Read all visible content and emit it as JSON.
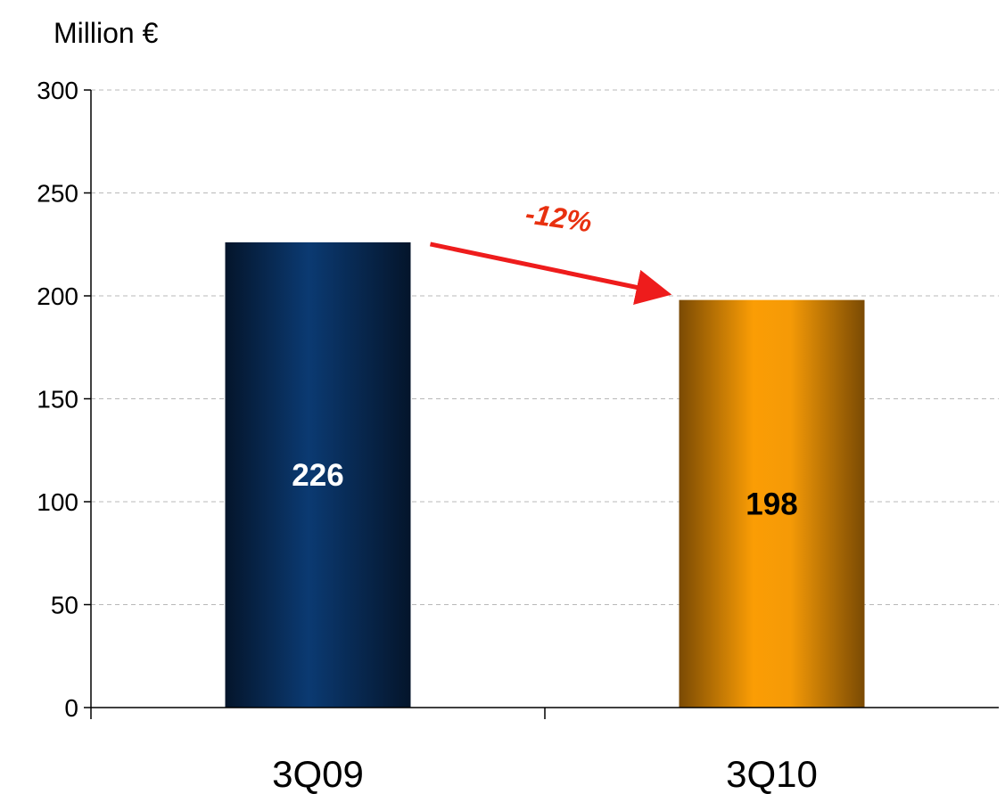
{
  "chart_data": {
    "type": "bar",
    "ylabel": "Million €",
    "ylim": [
      0,
      300
    ],
    "yticks": [
      0,
      50,
      100,
      150,
      200,
      250,
      300
    ],
    "grid": true,
    "categories": [
      "3Q09",
      "3Q10"
    ],
    "values": [
      226,
      198
    ],
    "data_labels": [
      "226",
      "198"
    ],
    "bar_colors": [
      "#0a2d5c",
      "#f7a50d"
    ],
    "data_label_colors": [
      "#ffffff",
      "#000000"
    ],
    "annotations": [
      {
        "text": "-12%",
        "color": "#e8300f",
        "from_category": "3Q09",
        "to_category": "3Q10"
      }
    ]
  }
}
